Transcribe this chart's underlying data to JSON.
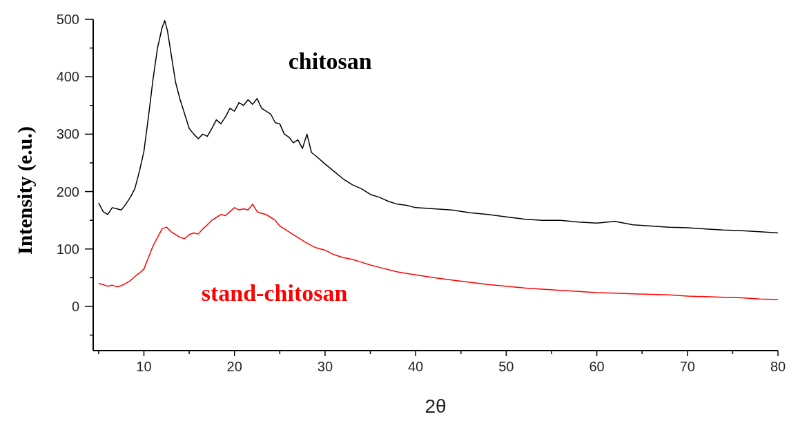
{
  "chart_data": {
    "type": "line",
    "xlabel": "2θ",
    "ylabel": "Intensity (e.u.)",
    "xlim": [
      4.4,
      80
    ],
    "ylim": [
      -77,
      500
    ],
    "xticks": [
      {
        "value": 5,
        "label": null
      },
      10,
      {
        "value": 15,
        "label": null
      },
      20,
      {
        "value": 25,
        "label": null
      },
      30,
      {
        "value": 35,
        "label": null
      },
      40,
      {
        "value": 45,
        "label": null
      },
      50,
      {
        "value": 55,
        "label": null
      },
      60,
      {
        "value": 65,
        "label": null
      },
      70,
      {
        "value": 75,
        "label": null
      },
      80
    ],
    "yticks": [
      {
        "value": -50,
        "label": null
      },
      0,
      {
        "value": 50,
        "label": null
      },
      100,
      {
        "value": 150,
        "label": null
      },
      200,
      {
        "value": 250,
        "label": null
      },
      300,
      {
        "value": 350,
        "label": null
      },
      400,
      {
        "value": 450,
        "label": null
      },
      500
    ],
    "grid": false,
    "marker": "none",
    "line_style": "solid",
    "series": [
      {
        "name": "chitosan",
        "color": "#000000",
        "x": [
          5,
          5.5,
          6,
          6.5,
          7,
          7.5,
          8,
          8.5,
          9,
          9.5,
          10,
          10.5,
          11,
          11.5,
          12,
          12.3,
          12.6,
          13,
          13.5,
          14,
          14.5,
          15,
          15.5,
          16,
          16.5,
          17,
          17.5,
          18,
          18.5,
          19,
          19.5,
          20,
          20.5,
          21,
          21.5,
          22,
          22.5,
          23,
          23.5,
          24,
          24.5,
          25,
          25.5,
          26,
          26.5,
          27,
          27.5,
          28,
          28.5,
          29,
          30,
          31,
          32,
          33,
          34,
          35,
          36,
          37,
          38,
          39,
          40,
          42,
          44,
          46,
          48,
          50,
          52,
          54,
          56,
          58,
          60,
          62,
          64,
          66,
          68,
          70,
          72,
          74,
          76,
          78,
          80
        ],
        "values": [
          180,
          165,
          160,
          172,
          170,
          168,
          178,
          190,
          205,
          235,
          270,
          330,
          395,
          450,
          485,
          498,
          480,
          440,
          390,
          360,
          335,
          310,
          300,
          292,
          300,
          296,
          310,
          325,
          318,
          330,
          345,
          340,
          355,
          350,
          360,
          352,
          362,
          345,
          340,
          335,
          320,
          318,
          300,
          295,
          285,
          290,
          275,
          300,
          268,
          262,
          248,
          235,
          222,
          212,
          205,
          195,
          190,
          183,
          178,
          176,
          172,
          170,
          168,
          163,
          160,
          156,
          152,
          150,
          150,
          147,
          145,
          148,
          142,
          140,
          138,
          137,
          135,
          133,
          132,
          130,
          128
        ]
      },
      {
        "name": "stand-chitosan",
        "color": "#ff0000",
        "x": [
          5,
          5.5,
          6,
          6.5,
          7,
          7.5,
          8,
          8.5,
          9,
          9.5,
          10,
          10.5,
          11,
          11.5,
          12,
          12.5,
          13,
          13.5,
          14,
          14.5,
          15,
          15.5,
          16,
          16.5,
          17,
          17.5,
          18,
          18.5,
          19,
          19.5,
          20,
          20.5,
          21,
          21.5,
          22,
          22.5,
          23,
          23.5,
          24,
          24.5,
          25,
          26,
          27,
          28,
          29,
          30,
          31,
          32,
          33,
          34,
          35,
          36,
          38,
          40,
          42,
          44,
          46,
          48,
          50,
          52,
          54,
          56,
          58,
          60,
          62,
          64,
          66,
          68,
          70,
          72,
          74,
          76,
          78,
          80
        ],
        "values": [
          40,
          38,
          35,
          37,
          34,
          36,
          40,
          45,
          52,
          58,
          65,
          85,
          105,
          120,
          135,
          138,
          130,
          125,
          120,
          118,
          125,
          128,
          126,
          135,
          142,
          150,
          155,
          160,
          158,
          165,
          172,
          168,
          170,
          168,
          178,
          165,
          162,
          160,
          155,
          150,
          140,
          130,
          120,
          110,
          102,
          98,
          90,
          85,
          82,
          77,
          72,
          68,
          60,
          55,
          50,
          46,
          42,
          38,
          35,
          32,
          30,
          28,
          26,
          24,
          23,
          22,
          21,
          20,
          18,
          17,
          16,
          15,
          13,
          12
        ]
      }
    ]
  }
}
